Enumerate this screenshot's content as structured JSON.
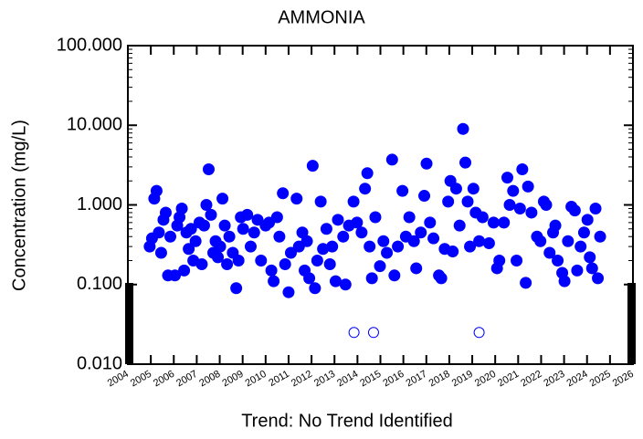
{
  "chart_data": {
    "type": "scatter",
    "title": "AMMONIA",
    "ylabel": "Concentration (mg/L)",
    "xlabel": "Trend: No Trend Identified",
    "yscale": "log",
    "ylim": [
      0.01,
      100
    ],
    "yticks": [
      {
        "value": 100,
        "label": "100.000"
      },
      {
        "value": 10,
        "label": "10.000"
      },
      {
        "value": 1,
        "label": "1.000"
      },
      {
        "value": 0.1,
        "label": "0.100"
      },
      {
        "value": 0.01,
        "label": "0.010"
      }
    ],
    "xlim": [
      2004,
      2026
    ],
    "xticks": [
      2004,
      2005,
      2006,
      2007,
      2008,
      2009,
      2010,
      2011,
      2012,
      2013,
      2014,
      2015,
      2016,
      2017,
      2018,
      2019,
      2020,
      2021,
      2022,
      2023,
      2024,
      2025,
      2026
    ],
    "series": [
      {
        "color": "#0000ff",
        "marker": "filled",
        "x": [
          2004.95,
          2005.05,
          2005.15,
          2005.25,
          2005.35,
          2005.45,
          2005.55,
          2005.65,
          2005.75,
          2005.85,
          2006.05,
          2006.15,
          2006.25,
          2006.35,
          2006.45,
          2006.55,
          2006.65,
          2006.75,
          2006.85,
          2006.95,
          2007.12,
          2007.22,
          2007.32,
          2007.42,
          2007.52,
          2007.62,
          2007.72,
          2007.82,
          2007.92,
          2008.02,
          2008.12,
          2008.22,
          2008.32,
          2008.42,
          2008.57,
          2008.72,
          2008.82,
          2008.92,
          2009.02,
          2009.2,
          2009.35,
          2009.5,
          2009.65,
          2009.8,
          2010.0,
          2010.15,
          2010.25,
          2010.35,
          2010.5,
          2010.6,
          2010.75,
          2010.85,
          2011.0,
          2011.1,
          2011.35,
          2011.45,
          2011.6,
          2011.7,
          2011.8,
          2011.9,
          2012.05,
          2012.15,
          2012.25,
          2012.4,
          2012.5,
          2012.65,
          2012.8,
          2012.9,
          2013.05,
          2013.15,
          2013.38,
          2013.48,
          2013.63,
          2013.83,
          2013.98,
          2014.18,
          2014.33,
          2014.43,
          2014.53,
          2014.63,
          2014.78,
          2014.98,
          2015.13,
          2015.28,
          2015.51,
          2015.61,
          2015.76,
          2015.96,
          2016.11,
          2016.26,
          2016.46,
          2016.56,
          2016.76,
          2016.91,
          2017.01,
          2017.16,
          2017.31,
          2017.55,
          2017.65,
          2017.8,
          2017.95,
          2018.05,
          2018.15,
          2018.3,
          2018.45,
          2018.6,
          2018.7,
          2018.8,
          2018.9,
          2019.05,
          2019.15,
          2019.3,
          2019.45,
          2019.73,
          2019.93,
          2020.08,
          2020.18,
          2020.38,
          2020.53,
          2020.63,
          2020.78,
          2020.93,
          2021.08,
          2021.18,
          2021.33,
          2021.43,
          2021.58,
          2021.82,
          2021.97,
          2022.12,
          2022.22,
          2022.37,
          2022.52,
          2022.62,
          2022.72,
          2022.92,
          2023.02,
          2023.17,
          2023.32,
          2023.47,
          2023.57,
          2023.72,
          2023.87,
          2024.02,
          2024.12,
          2024.22,
          2024.37,
          2024.47,
          2024.57
        ],
        "values": [
          0.3,
          0.38,
          1.2,
          1.5,
          0.45,
          0.25,
          0.65,
          0.8,
          0.13,
          0.4,
          0.13,
          0.55,
          0.7,
          0.9,
          0.15,
          0.45,
          0.28,
          0.5,
          0.2,
          0.35,
          0.6,
          0.18,
          0.55,
          1.0,
          2.8,
          0.75,
          0.25,
          0.35,
          0.22,
          0.3,
          1.2,
          0.55,
          0.18,
          0.4,
          0.25,
          0.09,
          0.2,
          0.7,
          0.5,
          0.75,
          0.3,
          0.45,
          0.65,
          0.2,
          0.55,
          0.6,
          0.15,
          0.11,
          0.7,
          0.4,
          1.4,
          0.18,
          0.08,
          0.25,
          1.2,
          0.3,
          0.45,
          0.15,
          0.35,
          0.12,
          3.1,
          0.09,
          0.2,
          1.1,
          0.28,
          0.5,
          0.18,
          0.3,
          0.11,
          0.65,
          0.4,
          0.1,
          0.55,
          1.1,
          0.6,
          0.45,
          1.6,
          2.5,
          0.3,
          0.12,
          0.7,
          0.17,
          0.35,
          0.25,
          3.7,
          0.13,
          0.3,
          1.5,
          0.4,
          0.7,
          0.35,
          0.16,
          0.45,
          1.3,
          3.3,
          0.6,
          0.38,
          0.13,
          0.12,
          0.28,
          1.1,
          2.0,
          0.26,
          1.6,
          0.55,
          9.0,
          3.4,
          1.1,
          0.3,
          1.6,
          0.8,
          0.35,
          0.7,
          0.33,
          0.6,
          0.16,
          0.2,
          0.6,
          2.2,
          1.0,
          1.5,
          0.2,
          0.9,
          2.8,
          0.105,
          1.7,
          0.8,
          0.4,
          0.35,
          1.1,
          1.0,
          0.25,
          0.45,
          0.55,
          0.2,
          0.14,
          0.11,
          0.35,
          0.95,
          0.85,
          0.15,
          0.3,
          0.45,
          0.65,
          0.22,
          0.16,
          0.9,
          0.12,
          0.4
        ]
      },
      {
        "color": "#0000ff",
        "marker": "open",
        "x": [
          2013.85,
          2014.7,
          2019.3
        ],
        "values": [
          0.025,
          0.025,
          0.025
        ]
      }
    ]
  }
}
